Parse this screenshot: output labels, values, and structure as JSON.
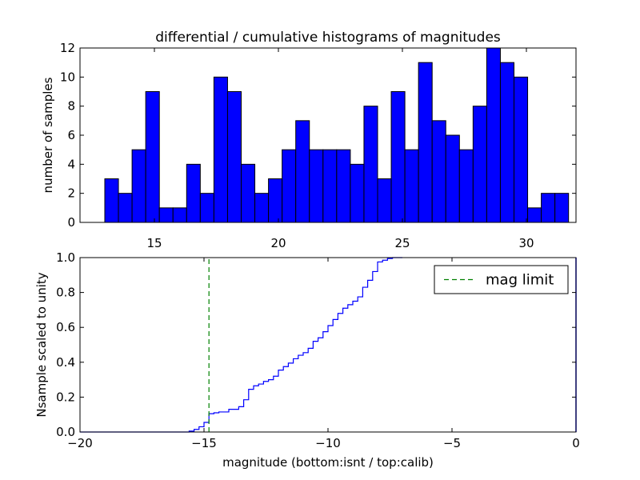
{
  "chart_data": [
    {
      "type": "bar",
      "title": "differential / cumulative histograms of magnitudes",
      "xlabel": "",
      "ylabel": "number of samples",
      "xlim": [
        12.0,
        32.0
      ],
      "ylim": [
        0,
        12
      ],
      "xticks": [
        15,
        20,
        25,
        30
      ],
      "xtick_labels": [
        "15",
        "20",
        "25",
        "30"
      ],
      "xaxis_ticks_position": "top",
      "yticks": [
        0,
        2,
        4,
        6,
        8,
        10,
        12
      ],
      "ytick_labels": [
        "0",
        "2",
        "4",
        "6",
        "8",
        "10",
        "12"
      ],
      "bar_color": "#0000ff",
      "bin_width": 0.55,
      "bin_edges_start": 13.0,
      "values": [
        3,
        2,
        5,
        9,
        1,
        1,
        4,
        2,
        10,
        9,
        4,
        2,
        3,
        5,
        7,
        5,
        5,
        5,
        4,
        8,
        3,
        9,
        5,
        11,
        7,
        6,
        5,
        8,
        12,
        11,
        10,
        1,
        2,
        2
      ]
    },
    {
      "type": "line",
      "drawstyle": "steps",
      "xlabel": "magnitude (bottom:isnt / top:calib)",
      "ylabel": "Nsample scaled to unity",
      "xlim": [
        -20,
        0
      ],
      "ylim": [
        0.0,
        1.0
      ],
      "xticks": [
        -20,
        -15,
        -10,
        -5,
        0
      ],
      "xtick_labels": [
        "−20",
        "−15",
        "−10",
        "−5",
        "0"
      ],
      "yticks": [
        0.0,
        0.2,
        0.4,
        0.6,
        0.8,
        1.0
      ],
      "ytick_labels": [
        "0.0",
        "0.2",
        "0.4",
        "0.6",
        "0.8",
        "1.0"
      ],
      "legend_position": "top-right",
      "series": [
        {
          "name": "",
          "color": "#0000ff",
          "x": [
            -20.0,
            -15.6,
            -15.4,
            -15.2,
            -15.0,
            -14.8,
            -14.6,
            -14.4,
            -14.0,
            -13.6,
            -13.4,
            -13.2,
            -13.0,
            -12.8,
            -12.6,
            -12.4,
            -12.2,
            -12.0,
            -11.8,
            -11.6,
            -11.4,
            -11.2,
            -11.0,
            -10.8,
            -10.6,
            -10.4,
            -10.2,
            -10.0,
            -9.8,
            -9.6,
            -9.4,
            -9.2,
            -9.0,
            -8.8,
            -8.6,
            -8.4,
            -8.2,
            -8.0,
            -7.8,
            -7.6,
            -7.4,
            -7.0
          ],
          "y": [
            0.0,
            0.005,
            0.015,
            0.03,
            0.055,
            0.105,
            0.11,
            0.115,
            0.13,
            0.145,
            0.185,
            0.245,
            0.265,
            0.275,
            0.29,
            0.3,
            0.32,
            0.355,
            0.375,
            0.395,
            0.42,
            0.44,
            0.455,
            0.48,
            0.52,
            0.54,
            0.575,
            0.61,
            0.645,
            0.68,
            0.71,
            0.73,
            0.75,
            0.775,
            0.83,
            0.87,
            0.92,
            0.975,
            0.985,
            0.995,
            1.0,
            1.0
          ]
        },
        {
          "name": "mag limit",
          "color": "#008000",
          "linestyle": "dashed",
          "x": [
            -14.8,
            -14.8
          ],
          "y": [
            0.0,
            1.0
          ]
        }
      ]
    }
  ]
}
